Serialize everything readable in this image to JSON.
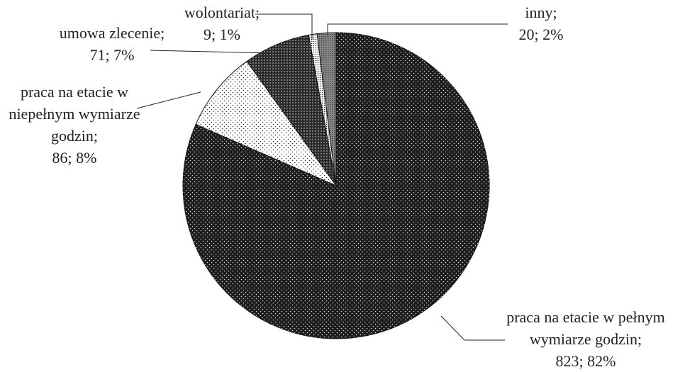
{
  "chart_data": {
    "type": "pie",
    "categories": [
      "praca na etacie w pełnym wymiarze godzin;",
      "praca na etacie w niepełnym wymiarze godzin;",
      "umowa zlecenie;",
      "wolontariat;",
      "inny;"
    ],
    "values": [
      823,
      86,
      71,
      9,
      20
    ],
    "value_labels": [
      "823; 82%",
      "86; 8%",
      "71; 7%",
      "9; 1%",
      "20; 2%"
    ],
    "colors": [
      "#1c1c1c",
      "#ffffff",
      "#2a2a2a",
      "#ffffff",
      "#8a8a8a"
    ]
  }
}
